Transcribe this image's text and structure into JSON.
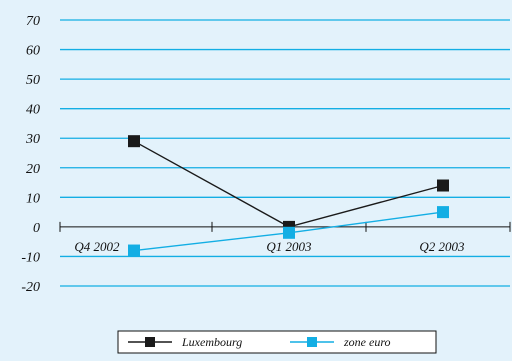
{
  "chart_data": {
    "type": "line",
    "categories": [
      "Q4 2002",
      "Q1 2003",
      "Q2 2003"
    ],
    "series": [
      {
        "name": "Luxembourg",
        "values": [
          29,
          0,
          14
        ],
        "color": "#1a1a1a"
      },
      {
        "name": "zone euro",
        "values": [
          -8,
          -2,
          5
        ],
        "color": "#13aee4"
      }
    ],
    "ylim": [
      -20,
      70
    ],
    "yticks": [
      "70",
      "60",
      "50",
      "40",
      "30",
      "20",
      "10",
      "0",
      "-10",
      "-20"
    ],
    "grid": true,
    "grid_color": "#13aee4",
    "background": "#e3f2fb",
    "legend": "bottom-right"
  }
}
